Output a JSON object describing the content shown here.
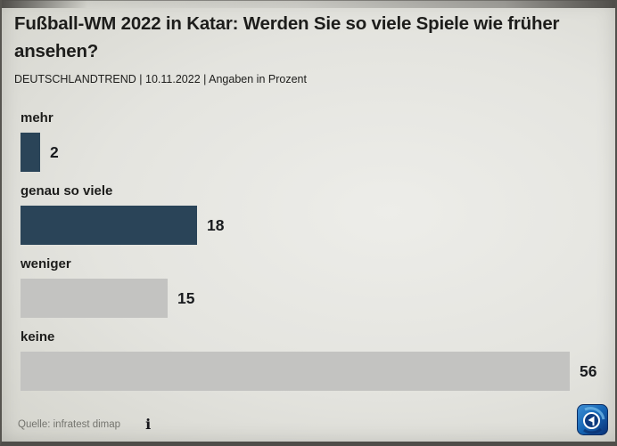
{
  "header": {
    "title": "Fußball-WM 2022 in Katar: Werden Sie so viele Spiele wie früher ansehen?",
    "subtitle": "DEUTSCHLANDTREND | 10.11.2022 | Angaben in Prozent"
  },
  "chart_data": {
    "type": "bar",
    "orientation": "horizontal",
    "title": "Fußball-WM 2022 in Katar: Werden Sie so viele Spiele wie früher ansehen?",
    "unit": "Prozent",
    "categories": [
      "mehr",
      "genau so viele",
      "weniger",
      "keine"
    ],
    "values": [
      2,
      18,
      15,
      56
    ],
    "bar_colors": [
      "#2a4458",
      "#2a4458",
      "#c3c3c1",
      "#c3c3c1"
    ],
    "xlim": [
      0,
      60
    ],
    "grid": false,
    "legend": "none",
    "value_labels_shown": true
  },
  "footer": {
    "source": "Quelle: infratest dimap",
    "info_icon_glyph": "i"
  },
  "colors": {
    "bar_highlight": "#2a4458",
    "bar_muted": "#c3c3c1",
    "text": "#1d1d1b",
    "source_text": "#74746e",
    "logo_blue": "#0d4da0"
  }
}
